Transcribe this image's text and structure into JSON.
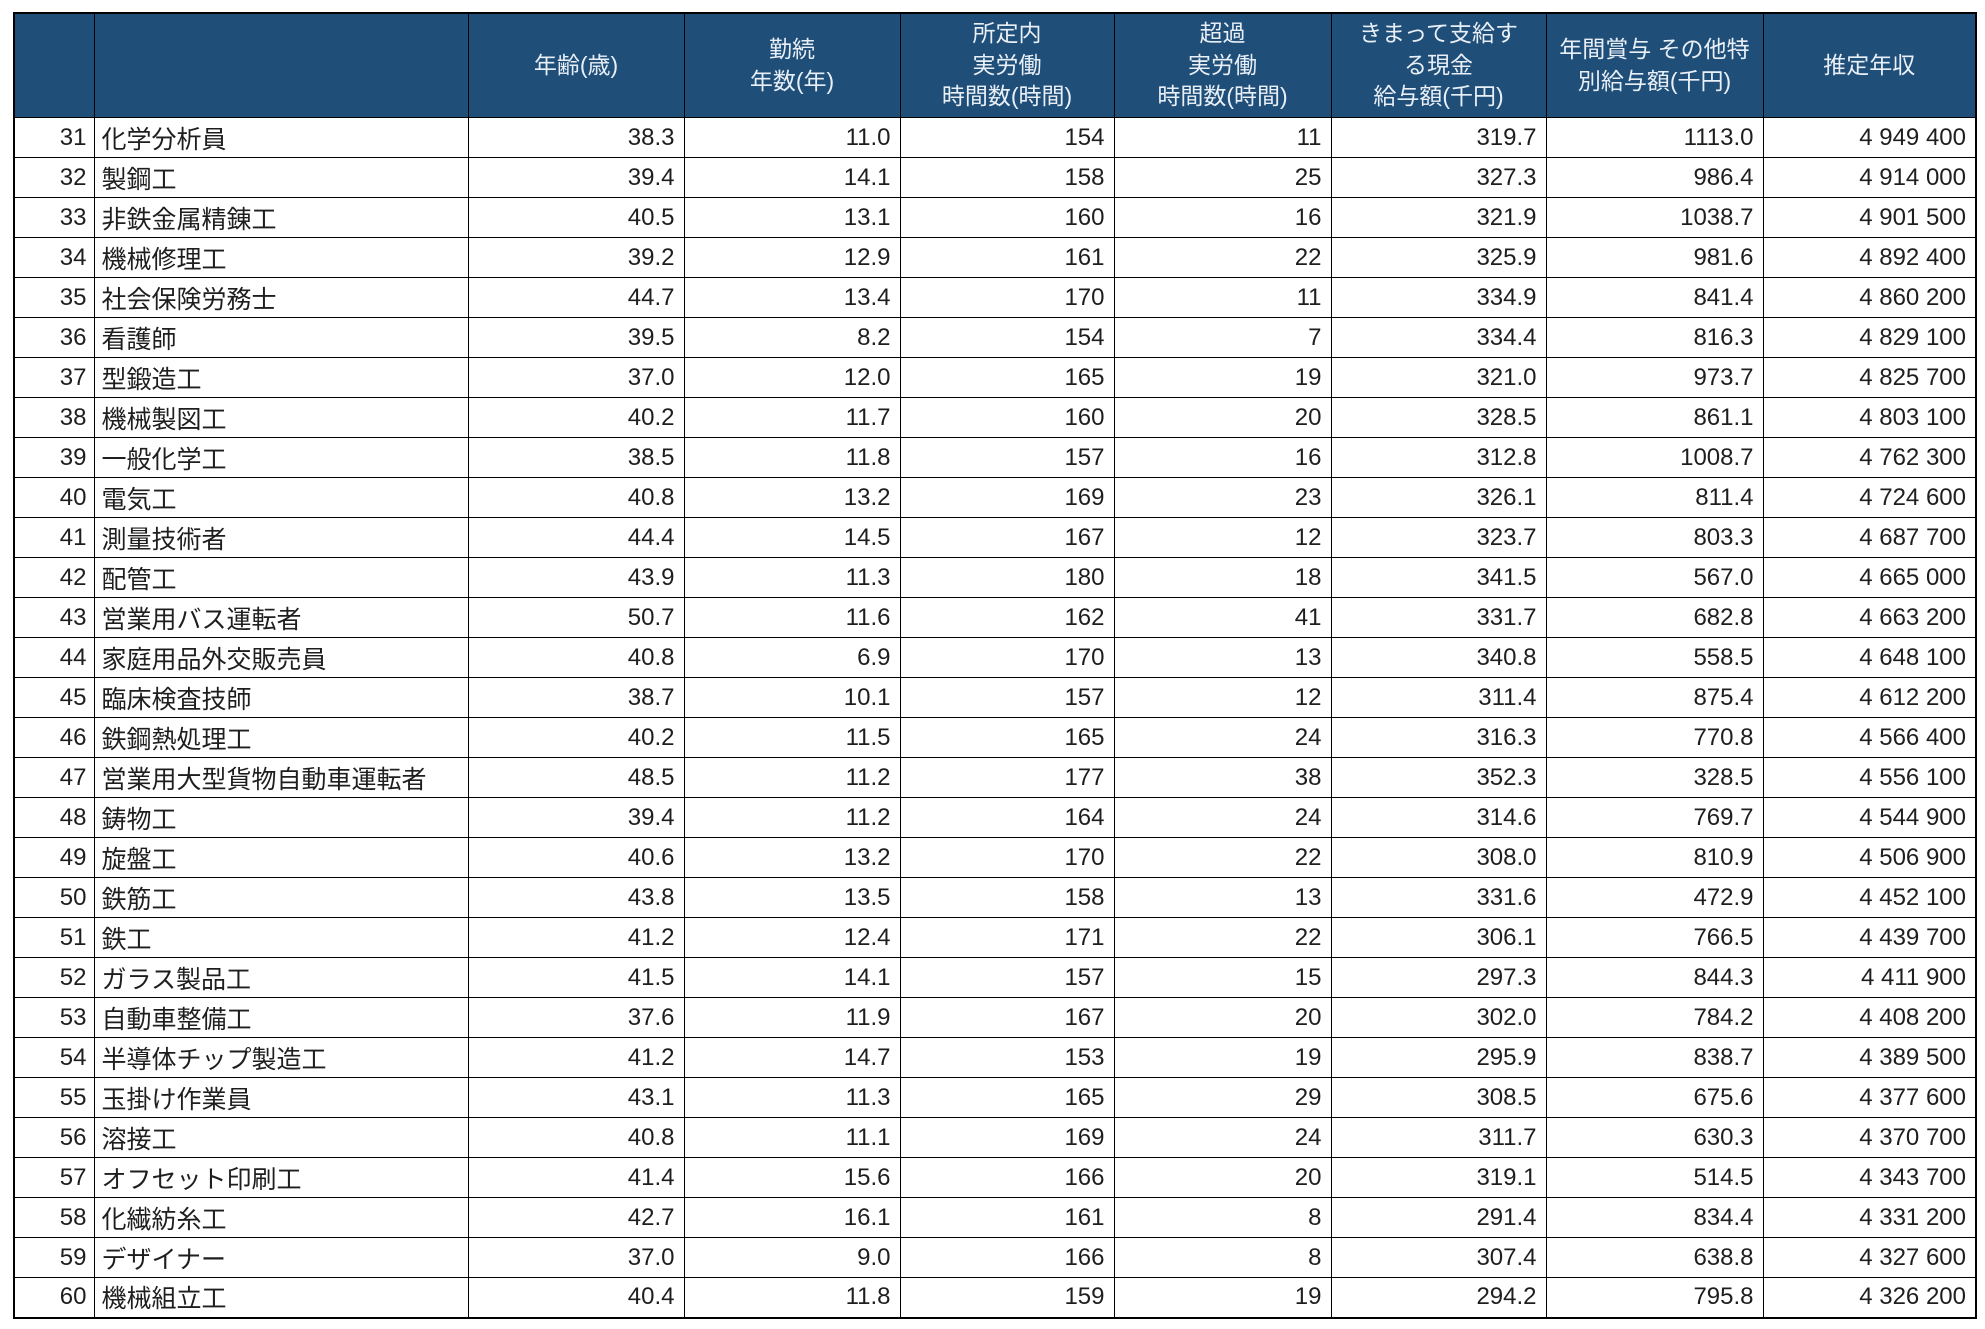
{
  "colors": {
    "header_bg": "#1F4E79",
    "header_text": "#E9EFF6",
    "border": "#000000",
    "row_bg": "#FFFFFF",
    "body_text": "#1E1E1E"
  },
  "table": {
    "columns": [
      {
        "key": "rank",
        "label": ""
      },
      {
        "key": "occupation",
        "label": ""
      },
      {
        "key": "age",
        "label": "年齢(歳)"
      },
      {
        "key": "tenure_years",
        "label": "勤続\n年数(年)"
      },
      {
        "key": "scheduled_hours",
        "label": "所定内\n実労働\n時間数(時間)"
      },
      {
        "key": "overtime_hours",
        "label": "超過\n実労働\n時間数(時間)"
      },
      {
        "key": "monthly_cash_pay",
        "label": "きまって支給す\nる現金\n給与額(千円)"
      },
      {
        "key": "annual_bonus",
        "label": "年間賞与 その他特\n別給与額(千円)"
      },
      {
        "key": "estimated_annual_income",
        "label": "推定年収"
      }
    ],
    "rows": [
      [
        "31",
        "化学分析員",
        "38.3",
        "11.0",
        "154",
        "11",
        "319.7",
        "1113.0",
        "4 949 400"
      ],
      [
        "32",
        "製鋼工",
        "39.4",
        "14.1",
        "158",
        "25",
        "327.3",
        "986.4",
        "4 914 000"
      ],
      [
        "33",
        "非鉄金属精錬工",
        "40.5",
        "13.1",
        "160",
        "16",
        "321.9",
        "1038.7",
        "4 901 500"
      ],
      [
        "34",
        "機械修理工",
        "39.2",
        "12.9",
        "161",
        "22",
        "325.9",
        "981.6",
        "4 892 400"
      ],
      [
        "35",
        "社会保険労務士",
        "44.7",
        "13.4",
        "170",
        "11",
        "334.9",
        "841.4",
        "4 860 200"
      ],
      [
        "36",
        "看護師",
        "39.5",
        "8.2",
        "154",
        "7",
        "334.4",
        "816.3",
        "4 829 100"
      ],
      [
        "37",
        "型鍛造工",
        "37.0",
        "12.0",
        "165",
        "19",
        "321.0",
        "973.7",
        "4 825 700"
      ],
      [
        "38",
        "機械製図工",
        "40.2",
        "11.7",
        "160",
        "20",
        "328.5",
        "861.1",
        "4 803 100"
      ],
      [
        "39",
        "一般化学工",
        "38.5",
        "11.8",
        "157",
        "16",
        "312.8",
        "1008.7",
        "4 762 300"
      ],
      [
        "40",
        "電気工",
        "40.8",
        "13.2",
        "169",
        "23",
        "326.1",
        "811.4",
        "4 724 600"
      ],
      [
        "41",
        "測量技術者",
        "44.4",
        "14.5",
        "167",
        "12",
        "323.7",
        "803.3",
        "4 687 700"
      ],
      [
        "42",
        "配管工",
        "43.9",
        "11.3",
        "180",
        "18",
        "341.5",
        "567.0",
        "4 665 000"
      ],
      [
        "43",
        "営業用バス運転者",
        "50.7",
        "11.6",
        "162",
        "41",
        "331.7",
        "682.8",
        "4 663 200"
      ],
      [
        "44",
        "家庭用品外交販売員",
        "40.8",
        "6.9",
        "170",
        "13",
        "340.8",
        "558.5",
        "4 648 100"
      ],
      [
        "45",
        "臨床検査技師",
        "38.7",
        "10.1",
        "157",
        "12",
        "311.4",
        "875.4",
        "4 612 200"
      ],
      [
        "46",
        "鉄鋼熱処理工",
        "40.2",
        "11.5",
        "165",
        "24",
        "316.3",
        "770.8",
        "4 566 400"
      ],
      [
        "47",
        "営業用大型貨物自動車運転者",
        "48.5",
        "11.2",
        "177",
        "38",
        "352.3",
        "328.5",
        "4 556 100"
      ],
      [
        "48",
        "鋳物工",
        "39.4",
        "11.2",
        "164",
        "24",
        "314.6",
        "769.7",
        "4 544 900"
      ],
      [
        "49",
        "旋盤工",
        "40.6",
        "13.2",
        "170",
        "22",
        "308.0",
        "810.9",
        "4 506 900"
      ],
      [
        "50",
        "鉄筋工",
        "43.8",
        "13.5",
        "158",
        "13",
        "331.6",
        "472.9",
        "4 452 100"
      ],
      [
        "51",
        "鉄工",
        "41.2",
        "12.4",
        "171",
        "22",
        "306.1",
        "766.5",
        "4 439 700"
      ],
      [
        "52",
        "ガラス製品工",
        "41.5",
        "14.1",
        "157",
        "15",
        "297.3",
        "844.3",
        "4 411 900"
      ],
      [
        "53",
        "自動車整備工",
        "37.6",
        "11.9",
        "167",
        "20",
        "302.0",
        "784.2",
        "4 408 200"
      ],
      [
        "54",
        "半導体チップ製造工",
        "41.2",
        "14.7",
        "153",
        "19",
        "295.9",
        "838.7",
        "4 389 500"
      ],
      [
        "55",
        "玉掛け作業員",
        "43.1",
        "11.3",
        "165",
        "29",
        "308.5",
        "675.6",
        "4 377 600"
      ],
      [
        "56",
        "溶接工",
        "40.8",
        "11.1",
        "169",
        "24",
        "311.7",
        "630.3",
        "4 370 700"
      ],
      [
        "57",
        "オフセット印刷工",
        "41.4",
        "15.6",
        "166",
        "20",
        "319.1",
        "514.5",
        "4 343 700"
      ],
      [
        "58",
        "化繊紡糸工",
        "42.7",
        "16.1",
        "161",
        "8",
        "291.4",
        "834.4",
        "4 331 200"
      ],
      [
        "59",
        "デザイナー",
        "37.0",
        "9.0",
        "166",
        "8",
        "307.4",
        "638.8",
        "4 327 600"
      ],
      [
        "60",
        "機械組立工",
        "40.4",
        "11.8",
        "159",
        "19",
        "294.2",
        "795.8",
        "4 326 200"
      ]
    ]
  }
}
